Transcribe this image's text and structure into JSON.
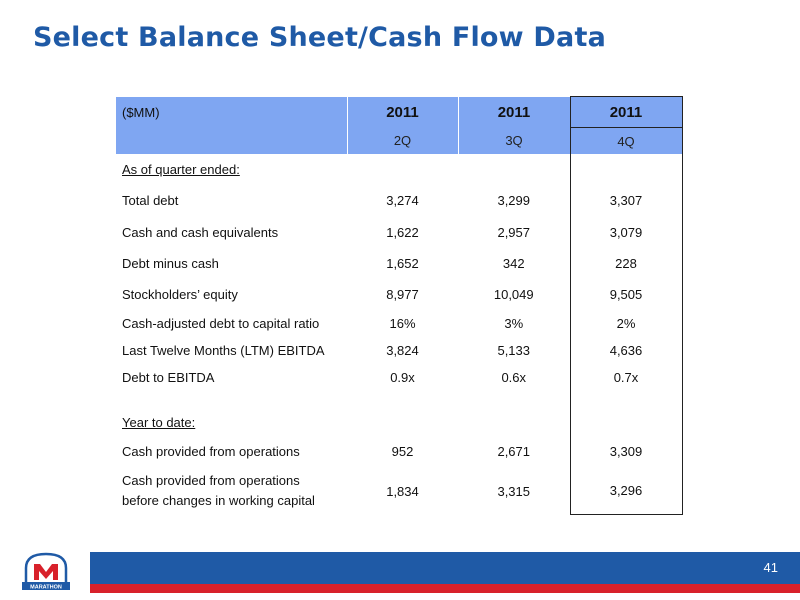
{
  "title": "Select Balance Sheet/Cash Flow Data",
  "table": {
    "unit_label": "($MM)",
    "years": [
      "2011",
      "2011",
      "2011"
    ],
    "quarters": [
      "2Q",
      "3Q",
      "4Q"
    ],
    "sections": [
      {
        "heading": "As of quarter ended:",
        "rows": [
          {
            "label": "Total debt",
            "values": [
              "3,274",
              "3,299",
              "3,307"
            ]
          },
          {
            "label": "Cash and cash equivalents",
            "values": [
              "1,622",
              "2,957",
              "3,079"
            ]
          },
          {
            "label": "Debt minus cash",
            "values": [
              "1,652",
              "342",
              "228"
            ]
          },
          {
            "label": "Stockholders’ equity",
            "values": [
              "8,977",
              "10,049",
              "9,505"
            ]
          },
          {
            "label": "Cash-adjusted debt to capital ratio",
            "values": [
              "16%",
              "3%",
              "2%"
            ]
          },
          {
            "label": "Last Twelve Months (LTM) EBITDA",
            "values": [
              "3,824",
              "5,133",
              "4,636"
            ]
          },
          {
            "label": "Debt to EBITDA",
            "values": [
              "0.9x",
              "0.6x",
              "0.7x"
            ]
          }
        ]
      },
      {
        "heading": "Year to date:",
        "rows": [
          {
            "label": "Cash provided from operations",
            "values": [
              "952",
              "2,671",
              "3,309"
            ]
          },
          {
            "label_line1": "Cash provided from operations",
            "label_line2": "before changes in working capital",
            "values": [
              "1,834",
              "3,315",
              "3,296"
            ]
          }
        ]
      }
    ]
  },
  "footer": {
    "page_number": "41",
    "logo_text": "MARATHON",
    "colors": {
      "blue": "#1f5aa6",
      "red": "#d8212b",
      "header_fill": "#7fa6f2"
    }
  }
}
